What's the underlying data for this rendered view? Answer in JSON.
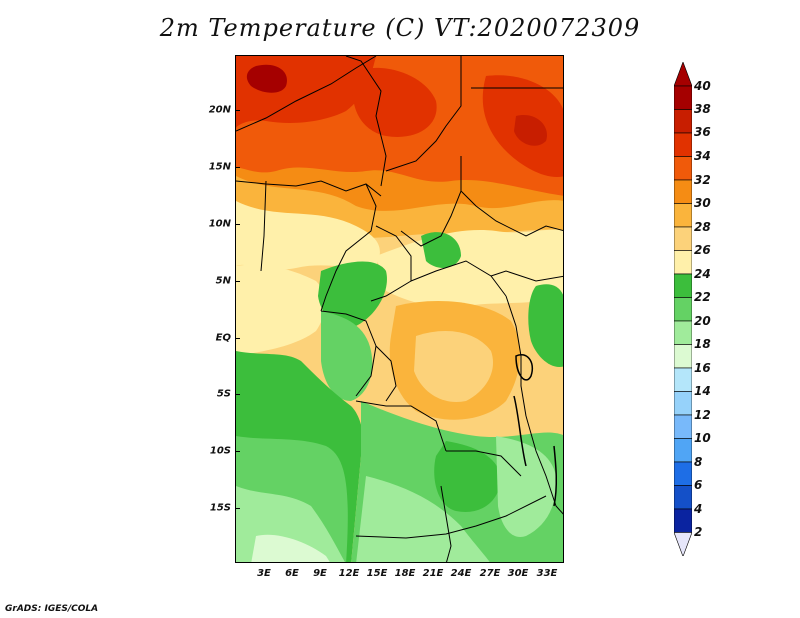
{
  "title": "2m Temperature (C) VT:2020072309",
  "credit": "GrADS: IGES/COLA",
  "y_axis": [
    "20N",
    "15N",
    "10N",
    "5N",
    "EQ",
    "5S",
    "10S",
    "15S"
  ],
  "x_axis": [
    "3E",
    "6E",
    "9E",
    "12E",
    "15E",
    "18E",
    "21E",
    "24E",
    "27E",
    "30E",
    "33E"
  ],
  "colorbar": {
    "labels": [
      "40",
      "38",
      "36",
      "34",
      "32",
      "30",
      "28",
      "26",
      "24",
      "22",
      "20",
      "18",
      "16",
      "14",
      "12",
      "10",
      "8",
      "6",
      "4",
      "2"
    ],
    "colors": [
      "#a50000",
      "#c81e00",
      "#e13200",
      "#f05a0a",
      "#f58c14",
      "#fab43c",
      "#fcd27a",
      "#fff0aa",
      "#3cbe3c",
      "#64d264",
      "#a0eb9b",
      "#dcfad2",
      "#b4e6fa",
      "#96d2fa",
      "#78b9fa",
      "#50a5f5",
      "#1e6ee6",
      "#1450c8",
      "#0a23a0",
      "#000078"
    ],
    "top_arrow_color": "#a50000",
    "bottom_arrow_color": "#e6e6fa"
  },
  "map_colors": {
    "hot_36": "#e13200",
    "hot_34": "#f05a0a",
    "warm_32": "#f58c14",
    "warm_30": "#fab43c",
    "warm_28": "#fcd27a",
    "warm_26": "#fff0aa",
    "green_24": "#3cbe3c",
    "green_22": "#64d264",
    "green_20": "#a0eb9b",
    "pale_18": "#dcfad2",
    "dark_40": "#a50000"
  }
}
